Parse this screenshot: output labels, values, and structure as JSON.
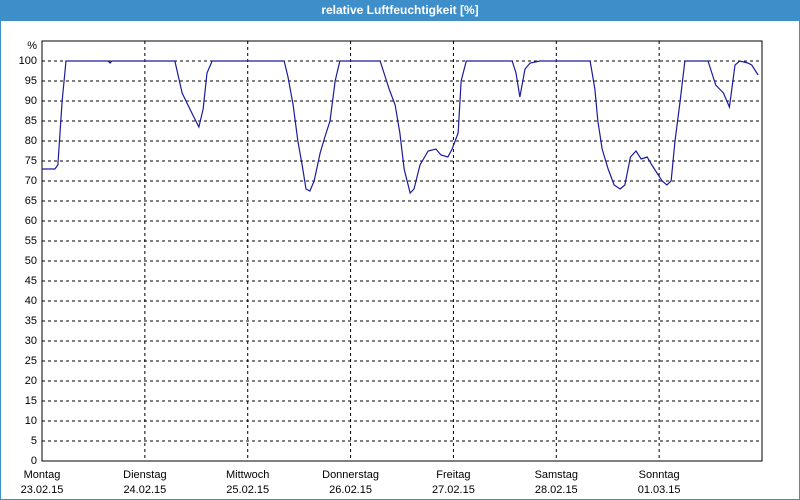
{
  "chart_data": {
    "type": "line",
    "title": "relative Luftfeuchtigkeit [%]",
    "y_unit": "%",
    "color": "#1c1c9c",
    "x": [
      0,
      3.0,
      3.7,
      4.7,
      5.6,
      15.4,
      15.9,
      16.3,
      31.0,
      32.7,
      34.5,
      36.6,
      37.6,
      38.5,
      39.7,
      56.5,
      57.4,
      58.6,
      59.7,
      60.7,
      61.6,
      62.5,
      63.5,
      64.9,
      66.0,
      67.2,
      68.4,
      69.5,
      78.9,
      79.8,
      81.0,
      82.4,
      83.5,
      84.5,
      85.9,
      86.8,
      88.2,
      90.1,
      91.9,
      93.1,
      94.7,
      95.7,
      97.1,
      97.8,
      99.0,
      109.7,
      110.6,
      111.5,
      112.7,
      113.9,
      116.2,
      127.9,
      129.0,
      129.7,
      130.7,
      132.1,
      133.5,
      134.9,
      136.0,
      137.3,
      138.6,
      139.8,
      141.2,
      142.3,
      143.5,
      144.7,
      145.8,
      146.8,
      147.7,
      148.9,
      150.0,
      155.4,
      156.3,
      157.2,
      158.1,
      159.0,
      160.4,
      161.7,
      162.8,
      164.7,
      165.6,
      166.8,
      167.1
    ],
    "values": [
      73,
      73,
      74,
      90,
      100,
      100,
      99.5,
      100,
      100,
      92,
      88,
      83.5,
      88,
      97,
      100,
      100,
      96,
      89,
      80,
      74,
      68,
      67.5,
      70,
      77,
      81,
      85,
      95,
      100,
      100,
      97,
      93,
      89,
      82,
      73,
      67,
      68,
      74,
      77.5,
      78,
      76.5,
      76,
      78,
      82,
      95,
      100,
      100,
      97,
      91,
      98,
      99.5,
      100,
      100,
      93,
      85,
      78,
      73,
      69,
      68,
      69,
      76,
      77.5,
      75.5,
      76,
      74,
      72,
      70,
      69,
      70,
      80,
      90,
      100,
      100,
      97,
      94,
      93,
      92,
      88.5,
      99,
      100,
      99.5,
      99,
      97,
      96.5
    ],
    "xlim": [
      0,
      168
    ],
    "xticks": [
      {
        "value": 0,
        "label": "Montag"
      },
      {
        "value": 24,
        "label": "Dienstag"
      },
      {
        "value": 48,
        "label": "Mittwoch"
      },
      {
        "value": 72,
        "label": "Donnerstag"
      },
      {
        "value": 96,
        "label": "Freitag"
      },
      {
        "value": 120,
        "label": "Samstag"
      },
      {
        "value": 144,
        "label": "Sonntag"
      }
    ],
    "xtick_dates": [
      "23.02.15",
      "24.02.15",
      "25.02.15",
      "26.02.15",
      "27.02.15",
      "28.02.15",
      "01.03.15"
    ],
    "ylim": [
      0,
      105
    ],
    "yticks": [
      0,
      5,
      10,
      15,
      20,
      25,
      30,
      35,
      40,
      45,
      50,
      55,
      60,
      65,
      70,
      75,
      80,
      85,
      90,
      95,
      100
    ],
    "grid": true
  }
}
